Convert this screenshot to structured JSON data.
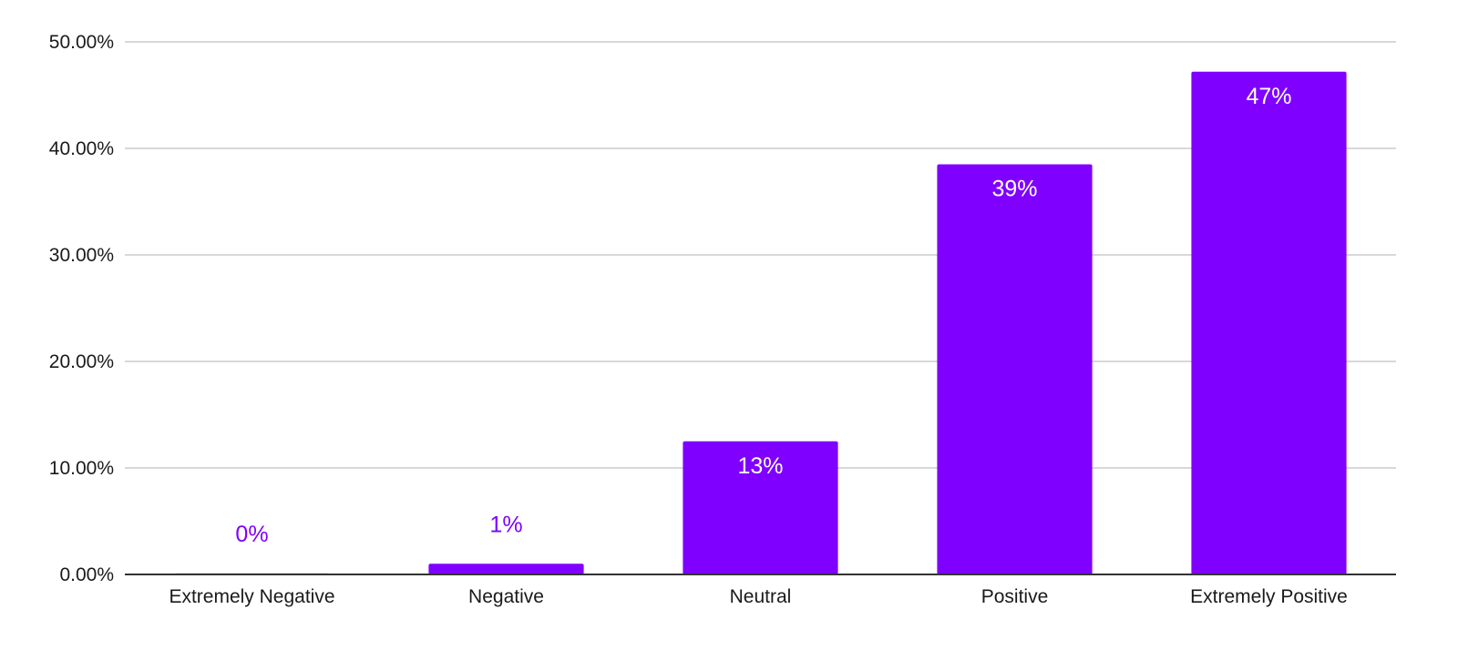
{
  "chart_data": {
    "type": "bar",
    "title": "",
    "xlabel": "",
    "ylabel": "",
    "categories": [
      "Extremely Negative",
      "Negative",
      "Neutral",
      "Positive",
      "Extremely Positive"
    ],
    "values": [
      0.1,
      1.0,
      12.5,
      38.5,
      47.2
    ],
    "data_labels": [
      "0%",
      "1%",
      "13%",
      "39%",
      "47%"
    ],
    "ylim": [
      0,
      50
    ],
    "yticks": [
      0,
      10,
      20,
      30,
      40,
      50
    ],
    "ytick_labels": [
      "0.00%",
      "10.00%",
      "20.00%",
      "30.00%",
      "40.00%",
      "50.00%"
    ],
    "grid": true,
    "legend": "none",
    "bar_color": "#7f00ff",
    "label_inside_color": "#ffffff",
    "label_outside_color": "#7f00ff",
    "gridline_color": "#cccccc",
    "axis_color": "#333333"
  }
}
